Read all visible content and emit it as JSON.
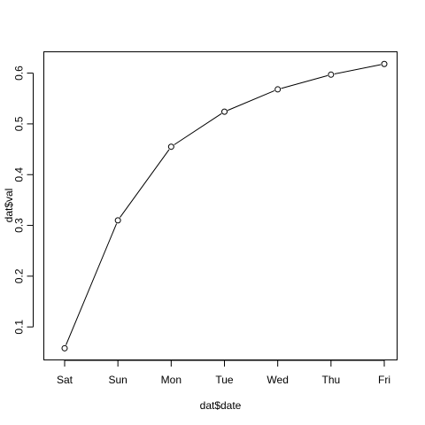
{
  "chart_data": {
    "type": "line",
    "title": "",
    "xlabel": "dat$date",
    "ylabel": "dat$val",
    "categories": [
      "Sat",
      "Sun",
      "Mon",
      "Tue",
      "Wed",
      "Thu",
      "Fri"
    ],
    "values": [
      0.058,
      0.31,
      0.455,
      0.524,
      0.568,
      0.597,
      0.618
    ],
    "ylim": [
      0.035,
      0.642
    ],
    "yticks": [
      0.1,
      0.2,
      0.3,
      0.4,
      0.5,
      0.6
    ],
    "ytick_labels": [
      "0.1",
      "0.2",
      "0.3",
      "0.4",
      "0.5",
      "0.6"
    ],
    "marker": "open-circle",
    "grid": false,
    "line_color": "#000000",
    "marker_color": "#000000"
  }
}
